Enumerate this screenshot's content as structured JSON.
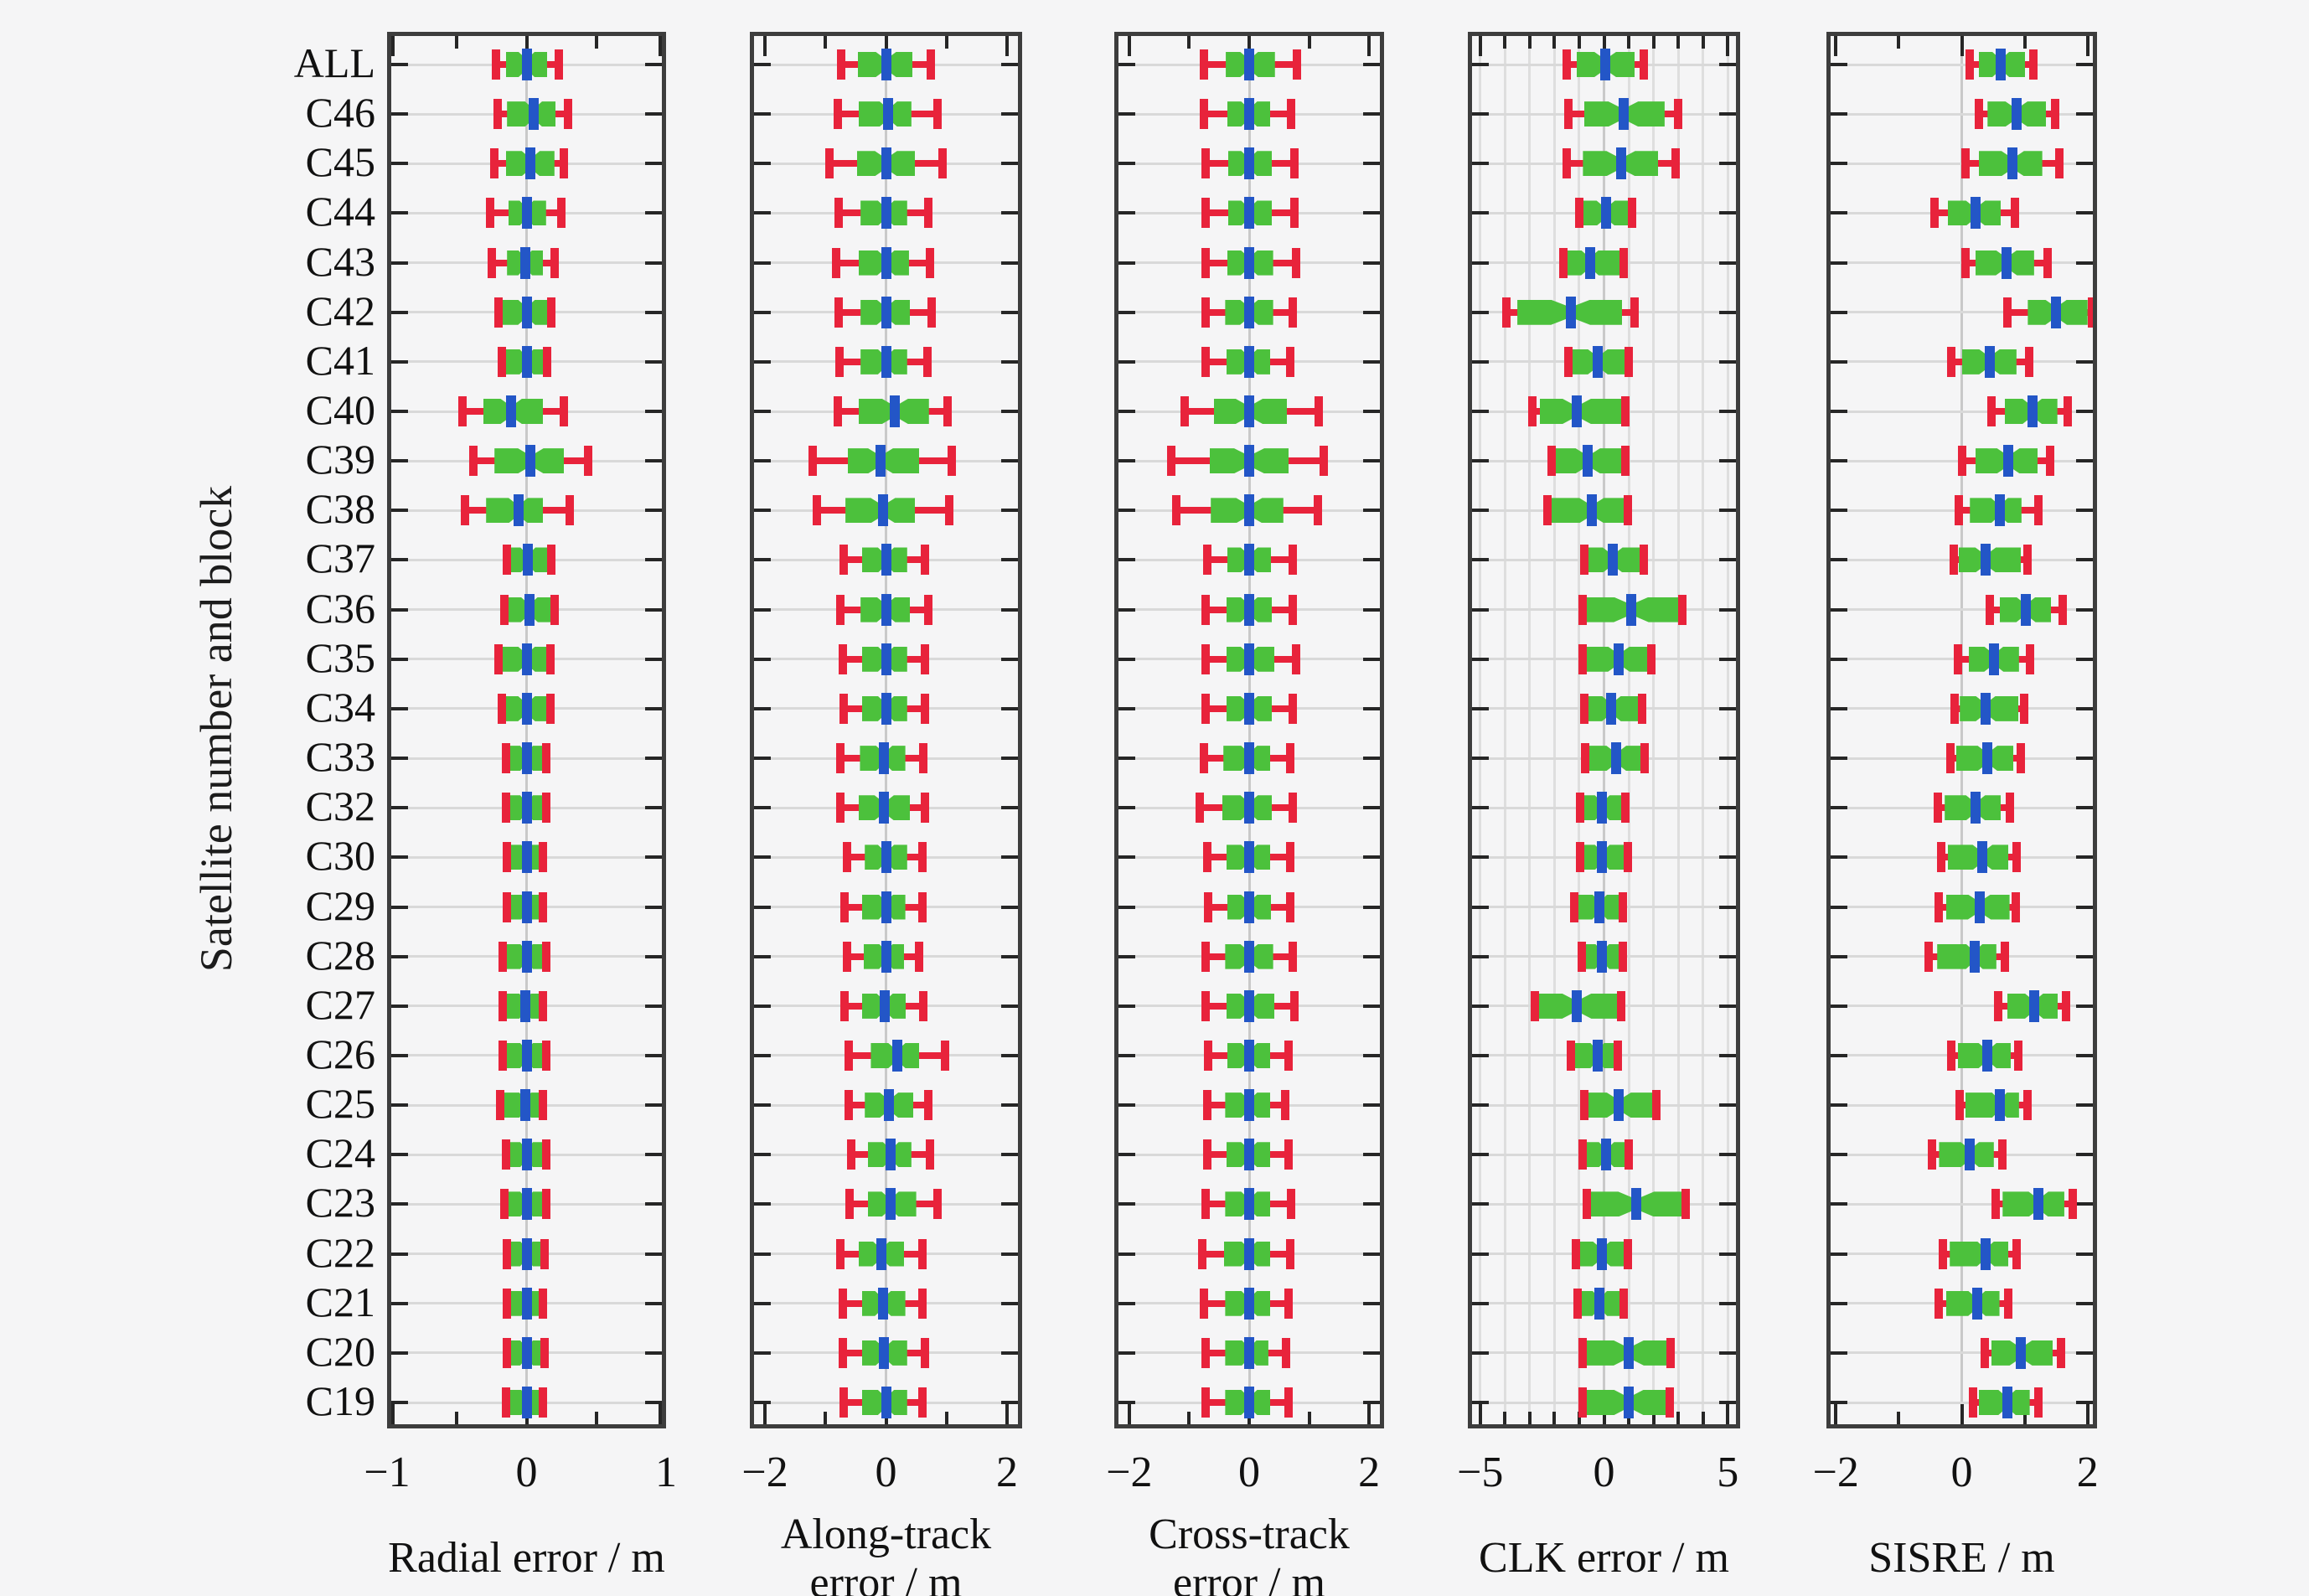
{
  "figure": {
    "y_axis_label": "Satellite number and block",
    "background": "#f5f5f6"
  },
  "colors": {
    "box_fill": "#4cc13c",
    "whisker": "#e8233b",
    "median": "#2356c7",
    "frame": "#3d3d3d",
    "grid": "#d9d9d9",
    "zero_line": "#c9c9c9",
    "unit_grid": "#dedede",
    "tick": "#262626",
    "text": "#111111"
  },
  "categories": [
    "ALL",
    "C46",
    "C45",
    "C44",
    "C43",
    "C42",
    "C41",
    "C40",
    "C39",
    "C38",
    "C37",
    "C36",
    "C35",
    "C34",
    "C33",
    "C32",
    "C30",
    "C29",
    "C28",
    "C27",
    "C26",
    "C25",
    "C24",
    "C23",
    "C22",
    "C21",
    "C20",
    "C19"
  ],
  "chart_data": [
    {
      "type": "boxplot",
      "orientation": "horizontal",
      "xlabel": [
        "Radial error / m"
      ],
      "xlim": [
        -1,
        1
      ],
      "xticks": [
        -1,
        -0.5,
        0,
        0.5,
        1
      ],
      "major_ticks": [
        -1,
        0,
        1
      ],
      "major_labels": [
        "−1",
        "0",
        "1"
      ],
      "vgrid": [
        0
      ],
      "values": [
        [
          -0.22,
          -0.15,
          0.0,
          0.15,
          0.23
        ],
        [
          -0.21,
          -0.14,
          0.05,
          0.21,
          0.3
        ],
        [
          -0.23,
          -0.15,
          0.03,
          0.2,
          0.27
        ],
        [
          -0.26,
          -0.13,
          0.0,
          0.14,
          0.25
        ],
        [
          -0.25,
          -0.14,
          -0.01,
          0.12,
          0.2
        ],
        [
          -0.2,
          -0.18,
          0.0,
          0.16,
          0.18
        ],
        [
          -0.18,
          -0.17,
          0.0,
          0.13,
          0.15
        ],
        [
          -0.46,
          -0.31,
          -0.11,
          0.12,
          0.27
        ],
        [
          -0.38,
          -0.23,
          0.03,
          0.27,
          0.44
        ],
        [
          -0.44,
          -0.29,
          -0.06,
          0.12,
          0.31
        ],
        [
          -0.14,
          -0.13,
          0.01,
          0.17,
          0.18
        ],
        [
          -0.16,
          -0.14,
          0.02,
          0.19,
          0.2
        ],
        [
          -0.2,
          -0.18,
          0.0,
          0.16,
          0.17
        ],
        [
          -0.18,
          -0.17,
          0.0,
          0.16,
          0.17
        ],
        [
          -0.15,
          -0.13,
          0.0,
          0.12,
          0.14
        ],
        [
          -0.15,
          -0.13,
          0.0,
          0.12,
          0.14
        ],
        [
          -0.14,
          -0.12,
          0.0,
          0.1,
          0.12
        ],
        [
          -0.14,
          -0.12,
          0.0,
          0.1,
          0.12
        ],
        [
          -0.17,
          -0.15,
          0.0,
          0.12,
          0.14
        ],
        [
          -0.17,
          -0.15,
          -0.01,
          0.1,
          0.12
        ],
        [
          -0.17,
          -0.15,
          0.0,
          0.12,
          0.14
        ],
        [
          -0.19,
          -0.17,
          -0.01,
          0.1,
          0.12
        ],
        [
          -0.15,
          -0.13,
          0.0,
          0.12,
          0.14
        ],
        [
          -0.16,
          -0.14,
          0.0,
          0.12,
          0.14
        ],
        [
          -0.14,
          -0.12,
          0.0,
          0.12,
          0.13
        ],
        [
          -0.14,
          -0.12,
          0.0,
          0.1,
          0.12
        ],
        [
          -0.14,
          -0.12,
          0.0,
          0.12,
          0.13
        ],
        [
          -0.15,
          -0.13,
          0.0,
          0.1,
          0.12
        ]
      ]
    },
    {
      "type": "boxplot",
      "orientation": "horizontal",
      "xlabel": [
        "Along-track",
        "error / m"
      ],
      "xlim": [
        -2.25,
        2.25
      ],
      "xticks": [
        -2,
        -1,
        0,
        1,
        2
      ],
      "major_ticks": [
        -2,
        0,
        2
      ],
      "major_labels": [
        "−2",
        "0",
        "2"
      ],
      "vgrid": [
        0
      ],
      "values": [
        [
          -0.74,
          -0.47,
          0.0,
          0.44,
          0.74
        ],
        [
          -0.8,
          -0.45,
          0.04,
          0.42,
          0.85
        ],
        [
          -0.93,
          -0.48,
          0.0,
          0.48,
          0.93
        ],
        [
          -0.78,
          -0.42,
          0.0,
          0.35,
          0.7
        ],
        [
          -0.82,
          -0.45,
          0.0,
          0.38,
          0.72
        ],
        [
          -0.78,
          -0.42,
          0.0,
          0.4,
          0.75
        ],
        [
          -0.77,
          -0.42,
          0.0,
          0.35,
          0.68
        ],
        [
          -0.8,
          -0.45,
          0.15,
          0.71,
          1.02
        ],
        [
          -1.21,
          -0.63,
          -0.09,
          0.55,
          1.09
        ],
        [
          -1.14,
          -0.67,
          -0.05,
          0.48,
          1.05
        ],
        [
          -0.7,
          -0.4,
          0.0,
          0.35,
          0.65
        ],
        [
          -0.75,
          -0.42,
          0.0,
          0.4,
          0.7
        ],
        [
          -0.72,
          -0.4,
          0.0,
          0.35,
          0.65
        ],
        [
          -0.7,
          -0.4,
          0.0,
          0.35,
          0.65
        ],
        [
          -0.75,
          -0.43,
          -0.03,
          0.32,
          0.62
        ],
        [
          -0.75,
          -0.45,
          -0.03,
          0.4,
          0.65
        ],
        [
          -0.65,
          -0.35,
          0.0,
          0.35,
          0.6
        ],
        [
          -0.68,
          -0.4,
          0.0,
          0.32,
          0.6
        ],
        [
          -0.65,
          -0.37,
          0.0,
          0.3,
          0.55
        ],
        [
          -0.68,
          -0.4,
          -0.02,
          0.33,
          0.62
        ],
        [
          -0.62,
          -0.25,
          0.18,
          0.55,
          0.98
        ],
        [
          -0.62,
          -0.35,
          0.05,
          0.45,
          0.7
        ],
        [
          -0.58,
          -0.3,
          0.08,
          0.42,
          0.72
        ],
        [
          -0.6,
          -0.3,
          0.07,
          0.5,
          0.85
        ],
        [
          -0.75,
          -0.45,
          -0.08,
          0.3,
          0.6
        ],
        [
          -0.72,
          -0.4,
          -0.05,
          0.32,
          0.6
        ],
        [
          -0.72,
          -0.4,
          -0.03,
          0.35,
          0.65
        ],
        [
          -0.7,
          -0.4,
          0.0,
          0.35,
          0.6
        ]
      ]
    },
    {
      "type": "boxplot",
      "orientation": "horizontal",
      "xlabel": [
        "Cross-track",
        "error / m"
      ],
      "xlim": [
        -2.25,
        2.25
      ],
      "xticks": [
        -2,
        -1,
        0,
        1,
        2
      ],
      "major_ticks": [
        -2,
        0,
        2
      ],
      "major_labels": [
        "−2",
        "0",
        "2"
      ],
      "vgrid": [
        0
      ],
      "values": [
        [
          -0.75,
          -0.39,
          0.0,
          0.43,
          0.79
        ],
        [
          -0.75,
          -0.37,
          0.0,
          0.35,
          0.7
        ],
        [
          -0.73,
          -0.35,
          0.0,
          0.38,
          0.75
        ],
        [
          -0.72,
          -0.35,
          0.0,
          0.38,
          0.75
        ],
        [
          -0.72,
          -0.37,
          0.0,
          0.4,
          0.78
        ],
        [
          -0.72,
          -0.4,
          0.0,
          0.4,
          0.72
        ],
        [
          -0.72,
          -0.38,
          0.0,
          0.35,
          0.68
        ],
        [
          -1.08,
          -0.59,
          0.0,
          0.63,
          1.16
        ],
        [
          -1.3,
          -0.66,
          0.0,
          0.66,
          1.25
        ],
        [
          -1.22,
          -0.64,
          0.0,
          0.57,
          1.14
        ],
        [
          -0.7,
          -0.37,
          0.0,
          0.37,
          0.72
        ],
        [
          -0.72,
          -0.38,
          0.0,
          0.38,
          0.72
        ],
        [
          -0.72,
          -0.38,
          0.0,
          0.42,
          0.78
        ],
        [
          -0.72,
          -0.38,
          0.0,
          0.38,
          0.72
        ],
        [
          -0.75,
          -0.43,
          0.0,
          0.35,
          0.68
        ],
        [
          -0.82,
          -0.45,
          0.0,
          0.38,
          0.72
        ],
        [
          -0.7,
          -0.38,
          0.0,
          0.35,
          0.68
        ],
        [
          -0.68,
          -0.37,
          0.0,
          0.37,
          0.68
        ],
        [
          -0.72,
          -0.4,
          0.0,
          0.4,
          0.72
        ],
        [
          -0.72,
          -0.38,
          0.0,
          0.42,
          0.75
        ],
        [
          -0.68,
          -0.37,
          0.0,
          0.35,
          0.65
        ],
        [
          -0.7,
          -0.4,
          0.0,
          0.35,
          0.6
        ],
        [
          -0.7,
          -0.38,
          0.0,
          0.35,
          0.65
        ],
        [
          -0.72,
          -0.4,
          0.0,
          0.35,
          0.7
        ],
        [
          -0.78,
          -0.42,
          0.0,
          0.35,
          0.68
        ],
        [
          -0.75,
          -0.4,
          0.0,
          0.35,
          0.65
        ],
        [
          -0.72,
          -0.4,
          0.0,
          0.32,
          0.62
        ],
        [
          -0.72,
          -0.4,
          0.0,
          0.35,
          0.65
        ]
      ]
    },
    {
      "type": "boxplot",
      "orientation": "horizontal",
      "xlabel": [
        "CLK error / m"
      ],
      "xlim": [
        -5.5,
        5.5
      ],
      "xticks": [
        -5,
        -4,
        -3,
        -2,
        -1,
        0,
        1,
        2,
        3,
        4,
        5
      ],
      "major_ticks": [
        -5,
        0,
        5
      ],
      "major_labels": [
        "−5",
        "0",
        "5"
      ],
      "vgrid": [
        -5,
        -4,
        -3,
        -2,
        -1,
        0,
        1,
        2,
        3,
        4,
        5
      ],
      "values": [
        [
          -1.5,
          -1.1,
          0.05,
          1.25,
          1.6
        ],
        [
          -1.45,
          -0.8,
          0.78,
          2.45,
          3.0
        ],
        [
          -1.5,
          -0.85,
          0.68,
          2.2,
          2.9
        ],
        [
          -1.0,
          -0.9,
          0.07,
          1.05,
          1.15
        ],
        [
          -1.65,
          -1.5,
          -0.57,
          0.73,
          0.78
        ],
        [
          -3.95,
          -3.5,
          -1.35,
          0.73,
          1.25
        ],
        [
          -1.45,
          -1.3,
          -0.25,
          0.85,
          1.0
        ],
        [
          -2.9,
          -2.6,
          -1.1,
          0.73,
          0.85
        ],
        [
          -2.1,
          -1.95,
          -0.65,
          0.73,
          0.85
        ],
        [
          -2.3,
          -2.15,
          -0.5,
          0.8,
          0.95
        ],
        [
          -0.8,
          -0.7,
          0.35,
          1.45,
          1.6
        ],
        [
          -0.85,
          -0.75,
          1.1,
          3.0,
          3.15
        ],
        [
          -0.85,
          -0.75,
          0.6,
          1.75,
          1.9
        ],
        [
          -0.8,
          -0.7,
          0.3,
          1.4,
          1.55
        ],
        [
          -0.75,
          -0.68,
          0.5,
          1.55,
          1.65
        ],
        [
          -0.95,
          -0.85,
          -0.07,
          0.73,
          0.85
        ],
        [
          -0.95,
          -0.85,
          -0.07,
          0.85,
          0.95
        ],
        [
          -1.2,
          -1.08,
          -0.17,
          0.63,
          0.75
        ],
        [
          -0.9,
          -0.85,
          -0.07,
          0.68,
          0.75
        ],
        [
          -2.8,
          -2.65,
          -1.1,
          0.63,
          0.7
        ],
        [
          -1.35,
          -1.25,
          -0.27,
          0.45,
          0.55
        ],
        [
          -0.8,
          -0.68,
          0.6,
          1.95,
          2.1
        ],
        [
          -0.85,
          -0.75,
          0.1,
          0.9,
          1.0
        ],
        [
          -0.7,
          -0.6,
          1.3,
          3.2,
          3.3
        ],
        [
          -1.15,
          -1.08,
          -0.1,
          0.85,
          0.95
        ],
        [
          -1.05,
          -0.95,
          -0.17,
          0.68,
          0.8
        ],
        [
          -0.85,
          -0.75,
          1.0,
          2.6,
          2.7
        ],
        [
          -0.85,
          -0.8,
          1.0,
          2.55,
          2.65
        ]
      ]
    },
    {
      "type": "boxplot",
      "orientation": "horizontal",
      "xlabel": [
        "SISRE / m"
      ],
      "xlim": [
        -2.15,
        2.15
      ],
      "xticks": [
        -2,
        -1,
        0,
        1,
        2
      ],
      "major_ticks": [
        -2,
        0,
        2
      ],
      "major_labels": [
        "−2",
        "0",
        "2"
      ],
      "vgrid": [
        0
      ],
      "values": [
        [
          0.13,
          0.27,
          0.62,
          1.01,
          1.14
        ],
        [
          0.27,
          0.41,
          0.87,
          1.34,
          1.49
        ],
        [
          0.06,
          0.27,
          0.81,
          1.28,
          1.55
        ],
        [
          -0.43,
          -0.22,
          0.22,
          0.62,
          0.85
        ],
        [
          0.06,
          0.22,
          0.71,
          1.15,
          1.36
        ],
        [
          0.72,
          1.05,
          1.5,
          2.0,
          2.1
        ],
        [
          -0.16,
          0.0,
          0.44,
          0.87,
          1.07
        ],
        [
          0.47,
          0.68,
          1.12,
          1.52,
          1.69
        ],
        [
          0.01,
          0.22,
          0.74,
          1.21,
          1.41
        ],
        [
          -0.05,
          0.13,
          0.6,
          0.95,
          1.22
        ],
        [
          -0.13,
          -0.05,
          0.38,
          0.94,
          1.04
        ],
        [
          0.44,
          0.6,
          1.02,
          1.42,
          1.61
        ],
        [
          -0.06,
          0.11,
          0.51,
          0.91,
          1.09
        ],
        [
          -0.11,
          -0.03,
          0.38,
          0.9,
          0.99
        ],
        [
          -0.18,
          -0.09,
          0.41,
          0.82,
          0.94
        ],
        [
          -0.38,
          -0.27,
          0.22,
          0.62,
          0.76
        ],
        [
          -0.32,
          -0.22,
          0.33,
          0.74,
          0.87
        ],
        [
          -0.36,
          -0.25,
          0.28,
          0.76,
          0.86
        ],
        [
          -0.52,
          -0.39,
          0.2,
          0.55,
          0.68
        ],
        [
          0.58,
          0.72,
          1.15,
          1.53,
          1.66
        ],
        [
          -0.16,
          -0.06,
          0.41,
          0.78,
          0.9
        ],
        [
          -0.03,
          0.06,
          0.6,
          0.91,
          1.04
        ],
        [
          -0.47,
          -0.36,
          0.13,
          0.51,
          0.65
        ],
        [
          0.54,
          0.65,
          1.22,
          1.63,
          1.76
        ],
        [
          -0.3,
          -0.19,
          0.38,
          0.74,
          0.87
        ],
        [
          -0.36,
          -0.25,
          0.24,
          0.6,
          0.74
        ],
        [
          0.36,
          0.47,
          0.94,
          1.45,
          1.58
        ],
        [
          0.18,
          0.27,
          0.72,
          1.08,
          1.22
        ]
      ]
    }
  ]
}
